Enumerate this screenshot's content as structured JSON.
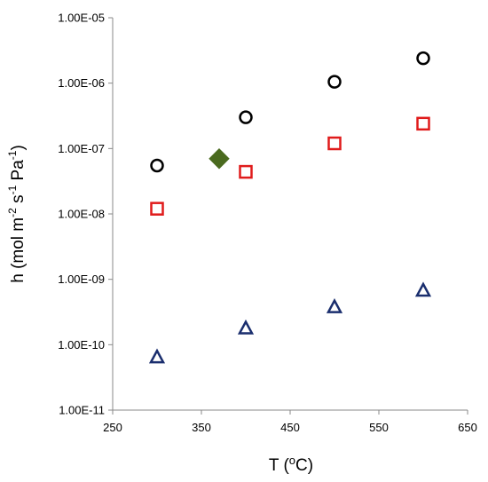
{
  "chart_data": {
    "type": "scatter",
    "title": "",
    "xlabel": "T (°C)",
    "ylabel": "h (mol m⁻² s⁻¹ Pa⁻¹)",
    "xlim": [
      250,
      650
    ],
    "ylim": [
      1e-11,
      1e-05
    ],
    "yscale": "log",
    "grid": false,
    "legend": "none",
    "x_ticks": [
      250,
      350,
      450,
      550,
      650
    ],
    "x_tick_labels": [
      "250",
      "350",
      "450",
      "550",
      "650"
    ],
    "y_ticks": [
      1e-11,
      1e-10,
      1e-09,
      1e-08,
      1e-07,
      1e-06,
      1e-05
    ],
    "y_tick_labels": [
      "1.00E-11",
      "1.00E-10",
      "1.00E-09",
      "1.00E-08",
      "1.00E-07",
      "1.00E-06",
      "1.00E-05"
    ],
    "series": [
      {
        "marker": "circle",
        "color": "#000000",
        "x": [
          300,
          400,
          500,
          600
        ],
        "y": [
          5.5e-08,
          3e-07,
          1.05e-06,
          2.4e-06
        ]
      },
      {
        "marker": "square",
        "color": "#e01b1b",
        "x": [
          300,
          400,
          500,
          600
        ],
        "y": [
          1.2e-08,
          4.4e-08,
          1.2e-07,
          2.4e-07
        ]
      },
      {
        "marker": "triangle",
        "color": "#1a2e6e",
        "x": [
          300,
          400,
          500,
          600
        ],
        "y": [
          6.5e-11,
          1.8e-10,
          3.8e-10,
          6.8e-10
        ]
      },
      {
        "marker": "diamond",
        "color": "#4a6a1f",
        "x": [
          370
        ],
        "y": [
          7e-08
        ]
      }
    ]
  }
}
